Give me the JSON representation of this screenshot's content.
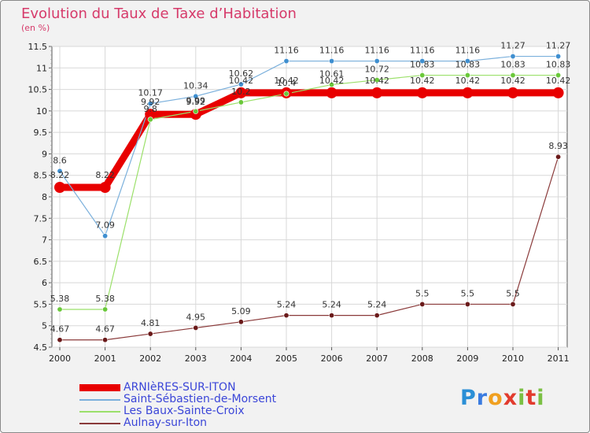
{
  "chart_data": {
    "type": "line",
    "title": "Evolution du Taux de Taxe d’Habitation",
    "unit_label": "(en %)",
    "x": [
      "2000",
      "2001",
      "2002",
      "2003",
      "2004",
      "2005",
      "2006",
      "2007",
      "2008",
      "2009",
      "2010",
      "2011"
    ],
    "ylim": [
      4.5,
      11.5
    ],
    "yticks": [
      "4.5",
      "5",
      "5.5",
      "6",
      "6.5",
      "7",
      "7.5",
      "8",
      "8.5",
      "9",
      "9.5",
      "10",
      "10.5",
      "11",
      "11.5"
    ],
    "grid": true,
    "legend_position": "bottom-left",
    "series": [
      {
        "name": "ARNIèRES-SUR-ITON",
        "color": "#e80000",
        "values": [
          8.22,
          8.22,
          9.92,
          9.92,
          10.42,
          10.42,
          10.42,
          10.42,
          10.42,
          10.42,
          10.42,
          10.42
        ],
        "labels": [
          "8.22",
          "8.22",
          "9.92",
          "9.92",
          "10.42",
          "10.42",
          "10.42",
          "10.42",
          "10.42",
          "10.42",
          "10.42",
          "10.42"
        ]
      },
      {
        "name": "Saint-Sébastien-de-Morsent",
        "color": "#7bb0dc",
        "values": [
          8.6,
          7.09,
          10.17,
          10.34,
          10.62,
          11.16,
          11.16,
          11.16,
          11.16,
          11.16,
          11.27,
          11.27
        ],
        "labels": [
          "8.6",
          "7.09",
          "10.17",
          "10.34",
          "10.62",
          "11.16",
          "11.16",
          "11.16",
          "11.16",
          "11.16",
          "11.27",
          "11.27"
        ]
      },
      {
        "name": "Les Baux-Sainte-Croix",
        "color": "#9be06a",
        "values": [
          5.38,
          5.38,
          9.8,
          9.99,
          10.2,
          10.4,
          10.61,
          10.72,
          10.83,
          10.83,
          10.83,
          10.83
        ],
        "labels": [
          "5.38",
          "5.38",
          "9.8",
          "9.99",
          "10.2",
          "10.4",
          "10.61",
          "10.72",
          "10.83",
          "10.83",
          "10.83",
          "10.83"
        ]
      },
      {
        "name": "Aulnay-sur-Iton",
        "color": "#8a3a3a",
        "values": [
          4.67,
          4.67,
          4.81,
          4.95,
          5.09,
          5.24,
          5.24,
          5.24,
          5.5,
          5.5,
          5.5,
          8.93
        ],
        "labels": [
          "4.67",
          "4.67",
          "4.81",
          "4.95",
          "5.09",
          "5.24",
          "5.24",
          "5.24",
          "5.5",
          "5.5",
          "5.5",
          "8.93"
        ]
      }
    ]
  },
  "logo": {
    "letters": [
      "P",
      "r",
      "o",
      "x",
      "i",
      "t",
      "i"
    ],
    "colors": [
      "#2b8fd6",
      "#3a7be0",
      "#f0a020",
      "#e23b2e",
      "#7bc043",
      "#e23b2e",
      "#7bc043"
    ]
  }
}
